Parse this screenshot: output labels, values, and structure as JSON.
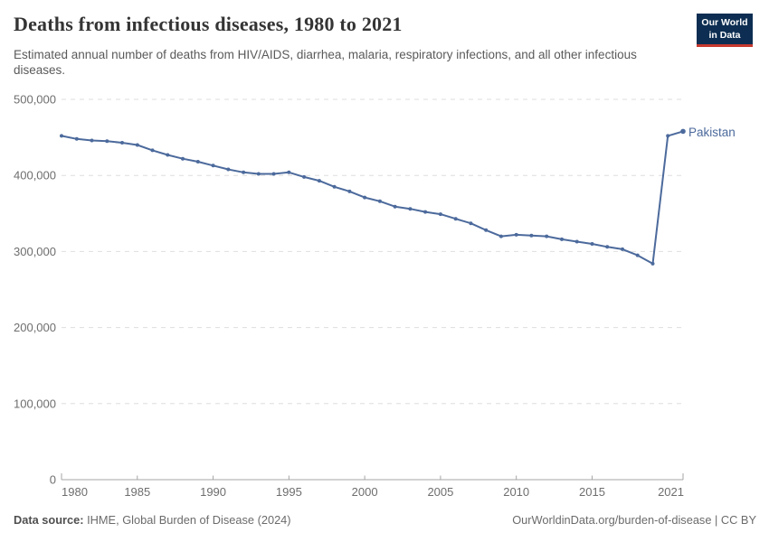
{
  "header": {
    "title": "Deaths from infectious diseases, 1980 to 2021",
    "subtitle": "Estimated annual number of deaths from HIV/AIDS, diarrhea, malaria, respiratory infections, and all other infectious diseases.",
    "logo": {
      "line1": "Our World",
      "line2": "in Data"
    }
  },
  "footer": {
    "source_label": "Data source:",
    "source_text": " IHME, Global Burden of Disease (2024)",
    "attribution": "OurWorldinData.org/burden-of-disease | CC BY"
  },
  "colors": {
    "series_line": "#4C6A9C",
    "logo_background": "#0d2e52",
    "logo_accent_red": "#c7392f",
    "gridline": "#dedede",
    "axis_line": "#a5a5a5",
    "tick_label": "#6e6e6e"
  },
  "chart_data": {
    "type": "line",
    "title": "Deaths from infectious diseases, 1980 to 2021",
    "xlabel": "",
    "ylabel": "",
    "xlim": [
      1980,
      2021
    ],
    "ylim": [
      0,
      500000
    ],
    "xticks": [
      1980,
      1985,
      1990,
      1995,
      2000,
      2005,
      2010,
      2015,
      2021
    ],
    "yticks": [
      0,
      100000,
      200000,
      300000,
      400000,
      500000
    ],
    "grid": "horizontal-dashed",
    "legend_position": "end-of-line-label",
    "x": [
      1980,
      1981,
      1982,
      1983,
      1984,
      1985,
      1986,
      1987,
      1988,
      1989,
      1990,
      1991,
      1992,
      1993,
      1994,
      1995,
      1996,
      1997,
      1998,
      1999,
      2000,
      2001,
      2002,
      2003,
      2004,
      2005,
      2006,
      2007,
      2008,
      2009,
      2010,
      2011,
      2012,
      2013,
      2014,
      2015,
      2016,
      2017,
      2018,
      2019,
      2020,
      2021
    ],
    "series": [
      {
        "name": "Pakistan",
        "color": "#4C6A9C",
        "values": [
          452000,
          448000,
          446000,
          445000,
          443000,
          440000,
          433000,
          427000,
          422000,
          418000,
          413000,
          408000,
          404000,
          402000,
          402000,
          404000,
          398000,
          393000,
          385000,
          379000,
          371000,
          366000,
          359000,
          356000,
          352000,
          349000,
          343000,
          337000,
          328000,
          320000,
          322000,
          321000,
          320000,
          316000,
          313000,
          310000,
          306000,
          303000,
          295000,
          284000,
          452000,
          458000
        ]
      }
    ]
  }
}
